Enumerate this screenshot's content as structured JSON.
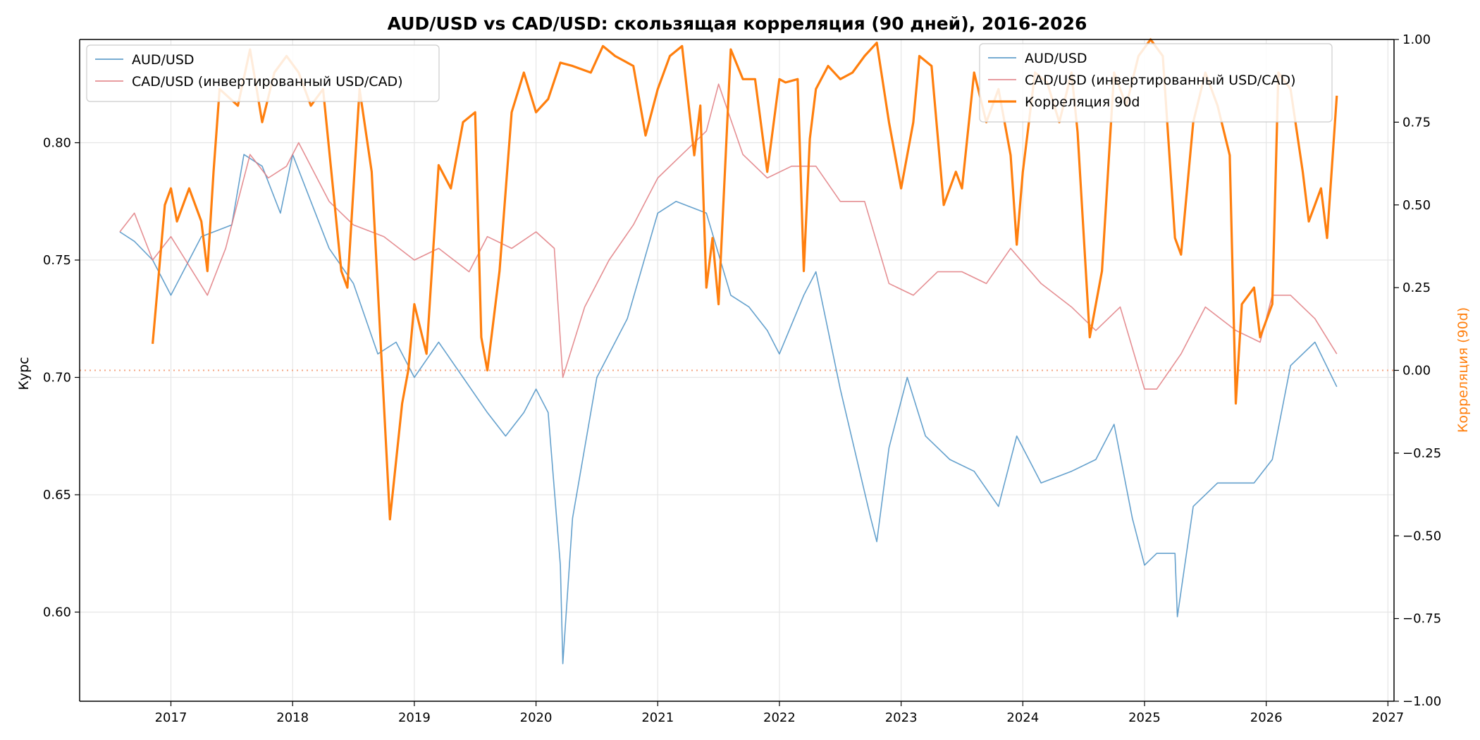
{
  "chart_data": {
    "type": "line",
    "title": "AUD/USD vs CAD/USD: скользящая корреляция (90 дней), 2016-2026",
    "ylabel": "Курс",
    "y2label": "Корреляция (90d)",
    "xlim": [
      2016.25,
      2027.05
    ],
    "ylim": [
      0.562,
      0.844
    ],
    "y2lim": [
      -1.0,
      1.0
    ],
    "x_ticks": [
      2017,
      2018,
      2019,
      2020,
      2021,
      2022,
      2023,
      2024,
      2025,
      2026,
      2027
    ],
    "x_tick_labels": [
      "2017",
      "2018",
      "2019",
      "2020",
      "2021",
      "2022",
      "2023",
      "2024",
      "2025",
      "2026",
      "2027"
    ],
    "y_ticks": [
      0.6,
      0.65,
      0.7,
      0.75,
      0.8
    ],
    "y_tick_labels": [
      "0.60",
      "0.65",
      "0.70",
      "0.75",
      "0.80"
    ],
    "y2_ticks": [
      -1.0,
      -0.75,
      -0.5,
      -0.25,
      0.0,
      0.25,
      0.5,
      0.75,
      1.0
    ],
    "y2_tick_labels": [
      "−1.00",
      "−0.75",
      "−0.50",
      "−0.25",
      "0.00",
      "0.25",
      "0.50",
      "0.75",
      "1.00"
    ],
    "grid": true,
    "reference_line": {
      "axis": "y2",
      "value": 0.0,
      "style": "dotted",
      "color": "#f4a582"
    },
    "legend_left": {
      "placement": "top-left",
      "entries": [
        "AUD/USD",
        "CAD/USD (инвертированный USD/CAD)"
      ]
    },
    "legend_right": {
      "placement": "top-right",
      "entries": [
        "AUD/USD",
        "CAD/USD (инвертированный USD/CAD)",
        "Корреляция 90d"
      ]
    },
    "series": [
      {
        "name": "AUD/USD",
        "axis": "left",
        "color": "#4a90c4",
        "x": [
          2016.58,
          2016.7,
          2016.85,
          2017.0,
          2017.25,
          2017.5,
          2017.6,
          2017.75,
          2017.9,
          2018.0,
          2018.15,
          2018.3,
          2018.5,
          2018.7,
          2018.85,
          2019.0,
          2019.2,
          2019.4,
          2019.6,
          2019.75,
          2019.9,
          2020.0,
          2020.1,
          2020.2,
          2020.22,
          2020.3,
          2020.5,
          2020.75,
          2021.0,
          2021.15,
          2021.4,
          2021.6,
          2021.75,
          2021.9,
          2022.0,
          2022.2,
          2022.3,
          2022.5,
          2022.75,
          2022.8,
          2022.9,
          2023.05,
          2023.2,
          2023.4,
          2023.6,
          2023.8,
          2023.95,
          2024.15,
          2024.4,
          2024.6,
          2024.75,
          2024.9,
          2025.0,
          2025.1,
          2025.25,
          2025.27,
          2025.4,
          2025.6,
          2025.9,
          2026.05,
          2026.2,
          2026.4,
          2026.58
        ],
        "values": [
          0.762,
          0.758,
          0.75,
          0.735,
          0.76,
          0.765,
          0.795,
          0.79,
          0.77,
          0.795,
          0.775,
          0.755,
          0.74,
          0.71,
          0.715,
          0.7,
          0.715,
          0.7,
          0.685,
          0.675,
          0.685,
          0.695,
          0.685,
          0.62,
          0.578,
          0.64,
          0.7,
          0.725,
          0.77,
          0.775,
          0.77,
          0.735,
          0.73,
          0.72,
          0.71,
          0.735,
          0.745,
          0.695,
          0.64,
          0.63,
          0.67,
          0.7,
          0.675,
          0.665,
          0.66,
          0.645,
          0.675,
          0.655,
          0.66,
          0.665,
          0.68,
          0.64,
          0.62,
          0.625,
          0.625,
          0.598,
          0.645,
          0.655,
          0.655,
          0.665,
          0.705,
          0.715,
          0.696
        ]
      },
      {
        "name": "CAD/USD (инвертированный USD/CAD)",
        "axis": "left",
        "color": "#e07b80",
        "x": [
          2016.58,
          2016.7,
          2016.85,
          2017.0,
          2017.3,
          2017.45,
          2017.65,
          2017.8,
          2017.95,
          2018.05,
          2018.3,
          2018.5,
          2018.75,
          2019.0,
          2019.2,
          2019.45,
          2019.6,
          2019.8,
          2020.0,
          2020.15,
          2020.22,
          2020.4,
          2020.6,
          2020.8,
          2021.0,
          2021.2,
          2021.4,
          2021.5,
          2021.7,
          2021.9,
          2022.1,
          2022.3,
          2022.5,
          2022.7,
          2022.9,
          2023.1,
          2023.3,
          2023.5,
          2023.7,
          2023.9,
          2024.15,
          2024.4,
          2024.6,
          2024.8,
          2025.0,
          2025.1,
          2025.3,
          2025.5,
          2025.75,
          2025.95,
          2026.05,
          2026.2,
          2026.4,
          2026.58
        ],
        "values": [
          0.762,
          0.77,
          0.75,
          0.76,
          0.735,
          0.755,
          0.795,
          0.785,
          0.79,
          0.8,
          0.775,
          0.765,
          0.76,
          0.75,
          0.755,
          0.745,
          0.76,
          0.755,
          0.762,
          0.755,
          0.7,
          0.73,
          0.75,
          0.765,
          0.785,
          0.795,
          0.805,
          0.825,
          0.795,
          0.785,
          0.79,
          0.79,
          0.775,
          0.775,
          0.74,
          0.735,
          0.745,
          0.745,
          0.74,
          0.755,
          0.74,
          0.73,
          0.72,
          0.73,
          0.695,
          0.695,
          0.71,
          0.73,
          0.72,
          0.715,
          0.735,
          0.735,
          0.725,
          0.71
        ]
      },
      {
        "name": "Корреляция 90d",
        "axis": "right",
        "color": "#ff7f0e",
        "x": [
          2016.85,
          2016.95,
          2017.0,
          2017.05,
          2017.15,
          2017.25,
          2017.3,
          2017.35,
          2017.4,
          2017.55,
          2017.65,
          2017.75,
          2017.85,
          2017.95,
          2018.05,
          2018.15,
          2018.25,
          2018.4,
          2018.45,
          2018.55,
          2018.65,
          2018.8,
          2018.9,
          2018.95,
          2019.0,
          2019.1,
          2019.2,
          2019.3,
          2019.4,
          2019.5,
          2019.55,
          2019.6,
          2019.7,
          2019.8,
          2019.9,
          2020.0,
          2020.1,
          2020.2,
          2020.3,
          2020.45,
          2020.55,
          2020.65,
          2020.8,
          2020.9,
          2021.0,
          2021.1,
          2021.2,
          2021.3,
          2021.35,
          2021.4,
          2021.45,
          2021.5,
          2021.6,
          2021.7,
          2021.8,
          2021.9,
          2022.0,
          2022.05,
          2022.15,
          2022.2,
          2022.25,
          2022.3,
          2022.4,
          2022.5,
          2022.6,
          2022.7,
          2022.8,
          2022.9,
          2023.0,
          2023.1,
          2023.15,
          2023.25,
          2023.35,
          2023.45,
          2023.5,
          2023.6,
          2023.7,
          2023.8,
          2023.9,
          2023.95,
          2024.0,
          2024.1,
          2024.2,
          2024.3,
          2024.4,
          2024.45,
          2024.55,
          2024.65,
          2024.75,
          2024.85,
          2024.95,
          2025.05,
          2025.15,
          2025.25,
          2025.3,
          2025.4,
          2025.5,
          2025.6,
          2025.7,
          2025.75,
          2025.8,
          2025.9,
          2025.95,
          2026.05,
          2026.1,
          2026.2,
          2026.3,
          2026.35,
          2026.45,
          2026.5,
          2026.58
        ],
        "values": [
          0.08,
          0.5,
          0.55,
          0.45,
          0.55,
          0.45,
          0.3,
          0.6,
          0.85,
          0.8,
          0.97,
          0.75,
          0.9,
          0.95,
          0.9,
          0.8,
          0.85,
          0.3,
          0.25,
          0.85,
          0.6,
          -0.45,
          -0.1,
          0.0,
          0.2,
          0.05,
          0.62,
          0.55,
          0.75,
          0.78,
          0.1,
          0.0,
          0.3,
          0.78,
          0.9,
          0.78,
          0.82,
          0.93,
          0.92,
          0.9,
          0.98,
          0.95,
          0.92,
          0.71,
          0.85,
          0.95,
          0.98,
          0.65,
          0.8,
          0.25,
          0.4,
          0.2,
          0.97,
          0.88,
          0.88,
          0.6,
          0.88,
          0.87,
          0.88,
          0.3,
          0.7,
          0.85,
          0.92,
          0.88,
          0.9,
          0.95,
          0.99,
          0.75,
          0.55,
          0.75,
          0.95,
          0.92,
          0.5,
          0.6,
          0.55,
          0.9,
          0.75,
          0.85,
          0.65,
          0.38,
          0.6,
          0.9,
          0.87,
          0.75,
          0.9,
          0.72,
          0.1,
          0.3,
          0.9,
          0.8,
          0.95,
          1.0,
          0.95,
          0.4,
          0.35,
          0.75,
          0.9,
          0.8,
          0.65,
          -0.1,
          0.2,
          0.25,
          0.1,
          0.2,
          0.9,
          0.85,
          0.6,
          0.45,
          0.55,
          0.4,
          0.83
        ]
      }
    ]
  }
}
